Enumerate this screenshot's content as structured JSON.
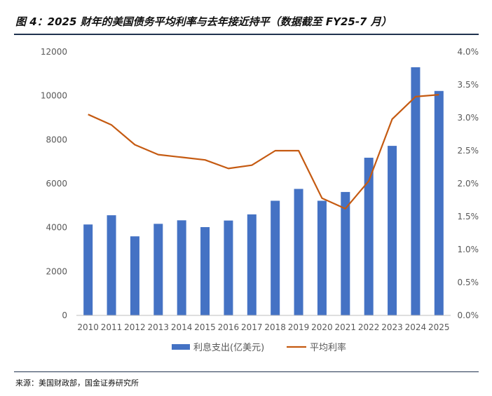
{
  "title": "图 4：2025 财年的美国债务平均利率与去年接近持平（数据截至 FY25-7 月）",
  "source": "来源：美国财政部，国金证券研究所",
  "colors": {
    "bar": "#4472C4",
    "line": "#C55A11",
    "axis": "#bfbfbf",
    "text": "#595959"
  },
  "chart_data": {
    "type": "bar",
    "categories": [
      "2010",
      "2011",
      "2012",
      "2013",
      "2014",
      "2015",
      "2016",
      "2017",
      "2018",
      "2019",
      "2020",
      "2021",
      "2022",
      "2023",
      "2024",
      "2025"
    ],
    "series": [
      {
        "name": "利息支出(亿美元)",
        "type": "bar",
        "axis": "left",
        "values": [
          4140,
          4560,
          3600,
          4170,
          4330,
          4020,
          4320,
          4600,
          5220,
          5760,
          5220,
          5620,
          7180,
          7720,
          11300,
          10220
        ]
      },
      {
        "name": "平均利率",
        "type": "line",
        "axis": "right",
        "values": [
          3.05,
          2.89,
          2.59,
          2.44,
          2.4,
          2.36,
          2.23,
          2.28,
          2.5,
          2.5,
          1.78,
          1.62,
          2.04,
          2.98,
          3.32,
          3.35
        ]
      }
    ],
    "y_left": {
      "min": 0,
      "max": 12000,
      "ticks": [
        "0",
        "2000",
        "4000",
        "6000",
        "8000",
        "10000",
        "12000"
      ]
    },
    "y_right": {
      "min": 0,
      "max": 4.0,
      "ticks": [
        "0.0%",
        "0.5%",
        "1.0%",
        "1.5%",
        "2.0%",
        "2.5%",
        "3.0%",
        "3.5%",
        "4.0%"
      ]
    },
    "legend_position": "bottom",
    "grid": false
  }
}
